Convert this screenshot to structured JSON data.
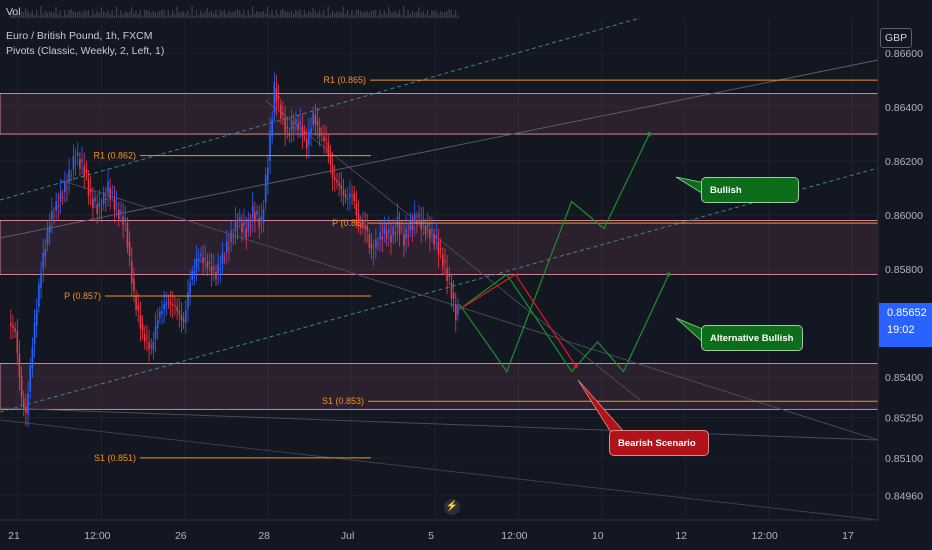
{
  "legend": {
    "vol_label": "Vol",
    "title": "Euro / British Pound, 1h, FXCM",
    "indicator": "Pivots (Classic, Weekly, 2, Left, 1)"
  },
  "currency": "GBP",
  "current_price": {
    "price": "0.85652",
    "countdown": "19:02"
  },
  "icons": {
    "flash": "lightning-icon"
  },
  "colors": {
    "background": "#131722",
    "up_candle": "#2962ff",
    "down_candle": "#f23645",
    "pivot_line": "#f7931a",
    "bullish": "#1e8f2a",
    "bearish": "#e01a1a",
    "zone_border": "#ff9eb0"
  },
  "chart_data": {
    "type": "candlestick",
    "symbol": "EURGBP",
    "timeframe": "1h",
    "x_ticks": [
      "21",
      "12:00",
      "26",
      "28",
      "Jul",
      "5",
      "12:00",
      "10",
      "12",
      "12:00",
      "17"
    ],
    "y_ticks": [
      "0.86600",
      "0.86400",
      "0.86200",
      "0.86000",
      "0.85800",
      "0.85400",
      "0.85250",
      "0.85100",
      "0.84960"
    ],
    "ylim": [
      0.8487,
      0.8673
    ],
    "price_path": [
      [
        0,
        0.856
      ],
      [
        3,
        0.8557
      ],
      [
        6,
        0.8532
      ],
      [
        8,
        0.8526
      ],
      [
        11,
        0.8552
      ],
      [
        15,
        0.858
      ],
      [
        19,
        0.8598
      ],
      [
        23,
        0.8605
      ],
      [
        27,
        0.8612
      ],
      [
        31,
        0.8622
      ],
      [
        35,
        0.8617
      ],
      [
        38,
        0.8606
      ],
      [
        42,
        0.8602
      ],
      [
        46,
        0.861
      ],
      [
        50,
        0.8602
      ],
      [
        54,
        0.8597
      ],
      [
        56,
        0.8583
      ],
      [
        58,
        0.857
      ],
      [
        62,
        0.8556
      ],
      [
        66,
        0.855
      ],
      [
        69,
        0.8562
      ],
      [
        73,
        0.8568
      ],
      [
        77,
        0.8566
      ],
      [
        81,
        0.856
      ],
      [
        84,
        0.8576
      ],
      [
        88,
        0.8585
      ],
      [
        92,
        0.8582
      ],
      [
        96,
        0.8578
      ],
      [
        99,
        0.8584
      ],
      [
        102,
        0.859
      ],
      [
        106,
        0.8598
      ],
      [
        110,
        0.8594
      ],
      [
        113,
        0.8601
      ],
      [
        117,
        0.8597
      ],
      [
        120,
        0.862
      ],
      [
        123,
        0.8647
      ],
      [
        126,
        0.8638
      ],
      [
        129,
        0.863
      ],
      [
        132,
        0.8634
      ],
      [
        135,
        0.8633
      ],
      [
        138,
        0.8626
      ],
      [
        141,
        0.8637
      ],
      [
        144,
        0.863
      ],
      [
        147,
        0.8627
      ],
      [
        150,
        0.8614
      ],
      [
        153,
        0.8611
      ],
      [
        156,
        0.8606
      ],
      [
        159,
        0.8608
      ],
      [
        162,
        0.8597
      ],
      [
        165,
        0.8596
      ],
      [
        168,
        0.8586
      ],
      [
        171,
        0.8591
      ],
      [
        174,
        0.8594
      ],
      [
        177,
        0.8592
      ],
      [
        180,
        0.8597
      ],
      [
        183,
        0.8591
      ],
      [
        186,
        0.8596
      ],
      [
        189,
        0.8599
      ],
      [
        192,
        0.8596
      ],
      [
        195,
        0.8594
      ],
      [
        198,
        0.859
      ],
      [
        201,
        0.8583
      ],
      [
        204,
        0.8575
      ],
      [
        207,
        0.8563
      ],
      [
        208,
        0.8565
      ]
    ],
    "pivot_levels": [
      {
        "label": "R1 (0.862)",
        "value": 0.8622
      },
      {
        "label": "P (0.857)",
        "value": 0.857
      },
      {
        "label": "S1 (0.851)",
        "value": 0.851
      },
      {
        "label": "R1 (0.865)",
        "value": 0.865
      },
      {
        "label": "P (0.86)",
        "value": 0.8597
      },
      {
        "label": "S1 (0.853)",
        "value": 0.8531
      }
    ],
    "zones": [
      {
        "from": 0.863,
        "to": 0.8645
      },
      {
        "from": 0.8578,
        "to": 0.8598
      },
      {
        "from": 0.8528,
        "to": 0.8545
      }
    ],
    "scenarios": [
      {
        "label": "Bullish",
        "color": "#1e8f2a",
        "path": [
          [
            208,
            0.8567
          ],
          [
            230,
            0.8542
          ],
          [
            260,
            0.8605
          ],
          [
            275,
            0.8595
          ],
          [
            296,
            0.863
          ]
        ]
      },
      {
        "label": "Alternative Bullish",
        "color": "#1e8f2a",
        "path": [
          [
            208,
            0.8565
          ],
          [
            230,
            0.8578
          ],
          [
            260,
            0.8542
          ],
          [
            272,
            0.8553
          ],
          [
            284,
            0.8542
          ],
          [
            305,
            0.8578
          ]
        ]
      },
      {
        "label": "Bearish Scenario",
        "color": "#e01a1a",
        "path": [
          [
            208,
            0.8565
          ],
          [
            234,
            0.8578
          ],
          [
            262,
            0.8544
          ]
        ]
      }
    ]
  }
}
